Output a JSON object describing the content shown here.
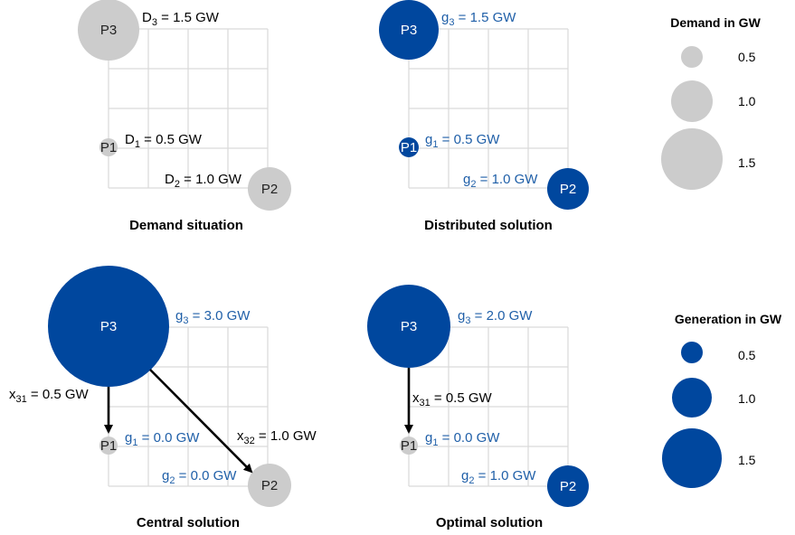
{
  "panels": {
    "demand": {
      "caption": "Demand situation",
      "p1": "P1",
      "p2": "P2",
      "p3": "P3",
      "eq1": {
        "sym": "D",
        "sub": "1",
        "rest": " = 0.5 GW"
      },
      "eq2": {
        "sym": "D",
        "sub": "2",
        "rest": " = 1.0 GW"
      },
      "eq3": {
        "sym": "D",
        "sub": "3",
        "rest": " = 1.5 GW"
      }
    },
    "distributed": {
      "caption": "Distributed solution",
      "p1": "P1",
      "p2": "P2",
      "p3": "P3",
      "eq1": {
        "sym": "g",
        "sub": "1",
        "rest": " = 0.5 GW"
      },
      "eq2": {
        "sym": "g",
        "sub": "2",
        "rest": " = 1.0 GW"
      },
      "eq3": {
        "sym": "g",
        "sub": "3",
        "rest": " = 1.5 GW"
      }
    },
    "central": {
      "caption": "Central solution",
      "p1": "P1",
      "p2": "P2",
      "p3": "P3",
      "eq1": {
        "sym": "g",
        "sub": "1",
        "rest": " = 0.0 GW"
      },
      "eq2": {
        "sym": "g",
        "sub": "2",
        "rest": " = 0.0 GW"
      },
      "eq3": {
        "sym": "g",
        "sub": "3",
        "rest": " = 3.0 GW"
      },
      "flow31": {
        "sym": "x",
        "sub": "31",
        "rest": " = 0.5 GW"
      },
      "flow32": {
        "sym": "x",
        "sub": "32",
        "rest": " = 1.0 GW"
      }
    },
    "optimal": {
      "caption": "Optimal solution",
      "p1": "P1",
      "p2": "P2",
      "p3": "P3",
      "eq1": {
        "sym": "g",
        "sub": "1",
        "rest": " = 0.0 GW"
      },
      "eq2": {
        "sym": "g",
        "sub": "2",
        "rest": " = 1.0 GW"
      },
      "eq3": {
        "sym": "g",
        "sub": "3",
        "rest": " = 2.0 GW"
      },
      "flow31": {
        "sym": "x",
        "sub": "31",
        "rest": " = 0.5 GW"
      }
    }
  },
  "legend": {
    "demand": {
      "title": "Demand in GW",
      "values": [
        "0.5",
        "1.0",
        "1.5"
      ]
    },
    "generation": {
      "title": "Generation in GW",
      "values": [
        "0.5",
        "1.0",
        "1.5"
      ]
    }
  },
  "colors": {
    "demand": "#cccccc",
    "generation": "#00479e",
    "generation_text": "#1f5fa8",
    "grid": "#d9d9d9"
  }
}
